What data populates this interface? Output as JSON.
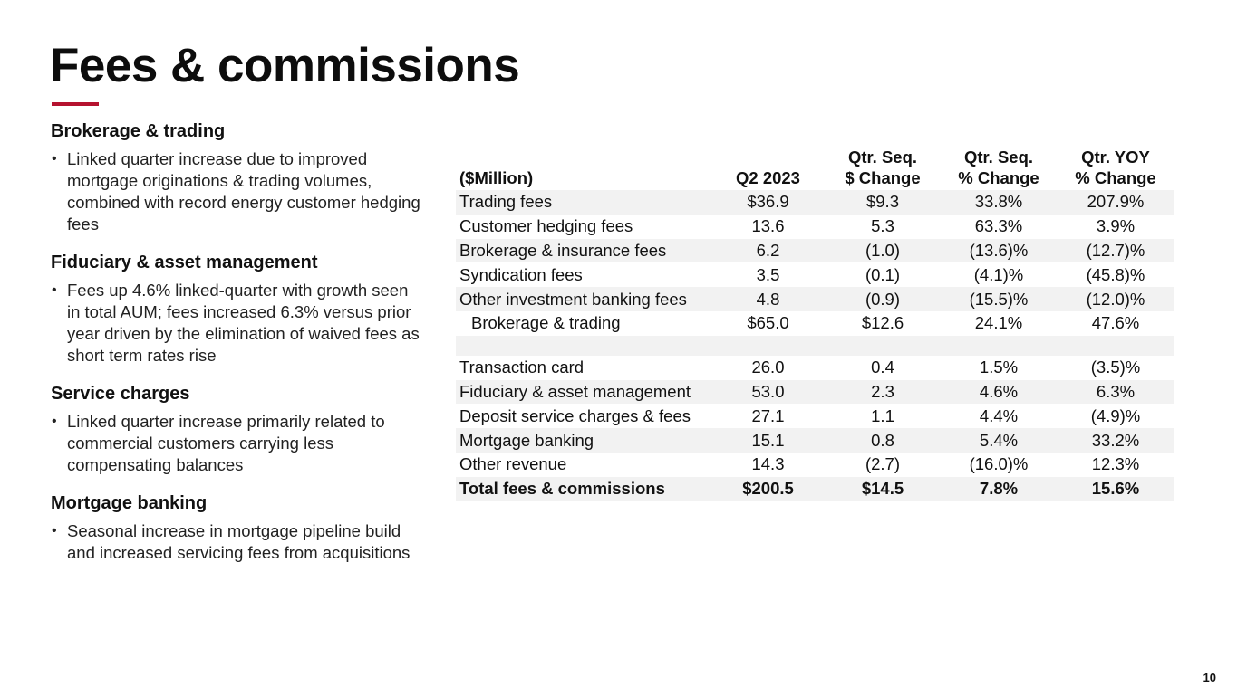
{
  "title": "Fees & commissions",
  "colors": {
    "accent": "#b5122f",
    "row_shade": "#f2f2f2",
    "text": "#111111"
  },
  "sections": [
    {
      "heading": "Brokerage & trading",
      "bullet": "Linked quarter increase due to improved mortgage originations & trading volumes, combined with record energy customer hedging fees"
    },
    {
      "heading": "Fiduciary & asset management",
      "bullet": "Fees up 4.6% linked-quarter with growth seen in total AUM; fees increased 6.3% versus prior year driven by the elimination of waived fees as short term rates rise"
    },
    {
      "heading": "Service charges",
      "bullet": "Linked quarter increase primarily related to commercial customers carrying less compensating balances"
    },
    {
      "heading": "Mortgage banking",
      "bullet": "Seasonal increase in mortgage pipeline build and increased servicing fees from acquisitions"
    }
  ],
  "bullet_glyph": "•",
  "table": {
    "headers": {
      "label": "($Million)",
      "q2": "Q2 2023",
      "seq_dollar_1": "Qtr. Seq.",
      "seq_dollar_2": "$ Change",
      "seq_pct_1": "Qtr. Seq.",
      "seq_pct_2": "% Change",
      "yoy_1": "Qtr. YOY",
      "yoy_2": "% Change"
    },
    "rows": [
      {
        "label": "Trading fees",
        "q2": "$36.9",
        "seq_dollar": "$9.3",
        "seq_pct": "33.8%",
        "yoy": "207.9%"
      },
      {
        "label": "Customer hedging fees",
        "q2": "13.6",
        "seq_dollar": "5.3",
        "seq_pct": "63.3%",
        "yoy": "3.9%"
      },
      {
        "label": "Brokerage & insurance fees",
        "q2": "6.2",
        "seq_dollar": "(1.0)",
        "seq_pct": "(13.6)%",
        "yoy": "(12.7)%"
      },
      {
        "label": "Syndication fees",
        "q2": "3.5",
        "seq_dollar": "(0.1)",
        "seq_pct": "(4.1)%",
        "yoy": "(45.8)%"
      },
      {
        "label": "Other investment banking fees",
        "q2": "4.8",
        "seq_dollar": "(0.9)",
        "seq_pct": "(15.5)%",
        "yoy": "(12.0)%"
      },
      {
        "label": "Brokerage & trading",
        "q2": "$65.0",
        "seq_dollar": "$12.6",
        "seq_pct": "24.1%",
        "yoy": "47.6%"
      },
      {
        "label": "Transaction card",
        "q2": "26.0",
        "seq_dollar": "0.4",
        "seq_pct": "1.5%",
        "yoy": "(3.5)%"
      },
      {
        "label": "Fiduciary & asset management",
        "q2": "53.0",
        "seq_dollar": "2.3",
        "seq_pct": "4.6%",
        "yoy": "6.3%"
      },
      {
        "label": "Deposit service charges & fees",
        "q2": "27.1",
        "seq_dollar": "1.1",
        "seq_pct": "4.4%",
        "yoy": "(4.9)%"
      },
      {
        "label": "Mortgage banking",
        "q2": "15.1",
        "seq_dollar": "0.8",
        "seq_pct": "5.4%",
        "yoy": "33.2%"
      },
      {
        "label": "Other revenue",
        "q2": "14.3",
        "seq_dollar": "(2.7)",
        "seq_pct": "(16.0)%",
        "yoy": "12.3%"
      },
      {
        "label": "Total fees & commissions",
        "q2": "$200.5",
        "seq_dollar": "$14.5",
        "seq_pct": "7.8%",
        "yoy": "15.6%"
      }
    ]
  },
  "page_number": "10"
}
